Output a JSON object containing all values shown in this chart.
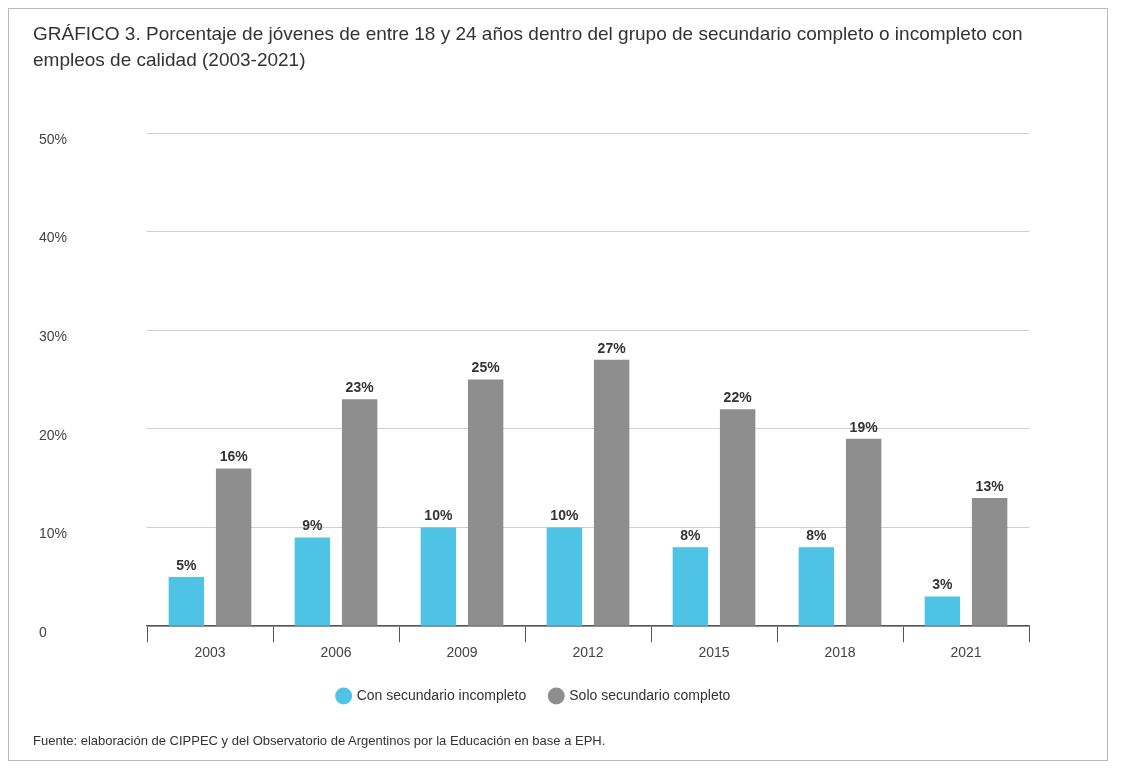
{
  "chart_data": {
    "type": "bar",
    "title": "GRÁFICO 3. Porcentaje de jóvenes de entre 18 y 24 años dentro del grupo de secundario completo o incompleto con empleos de calidad (2003-2021)",
    "annotations": [
      "Fuente: elaboración de CIPPEC y del Observatorio de Argentinos por la Educación en base a EPH."
    ],
    "categories": [
      "2003",
      "2006",
      "2009",
      "2012",
      "2015",
      "2018",
      "2021"
    ],
    "series": [
      {
        "name": "Con secundario incompleto",
        "color": "#4ec3e6",
        "values": [
          5,
          9,
          10,
          10,
          8,
          8,
          3
        ],
        "value_labels": [
          "5%",
          "9%",
          "10%",
          "10%",
          "8%",
          "8%",
          "3%"
        ]
      },
      {
        "name": "Solo secundario completo",
        "color": "#8e8e8e",
        "values": [
          16,
          23,
          25,
          27,
          22,
          19,
          13
        ],
        "value_labels": [
          "16%",
          "23%",
          "25%",
          "27%",
          "22%",
          "19%",
          "13%"
        ]
      }
    ],
    "ylim": [
      0,
      50
    ],
    "yticks": [
      {
        "value": 0,
        "label": "0"
      },
      {
        "value": 10,
        "label": "10%"
      },
      {
        "value": 20,
        "label": "20%"
      },
      {
        "value": 30,
        "label": "30%"
      },
      {
        "value": 40,
        "label": "40%"
      },
      {
        "value": 50,
        "label": "50%"
      }
    ],
    "grid": "y",
    "legend": "bottom",
    "marker": "circle"
  }
}
